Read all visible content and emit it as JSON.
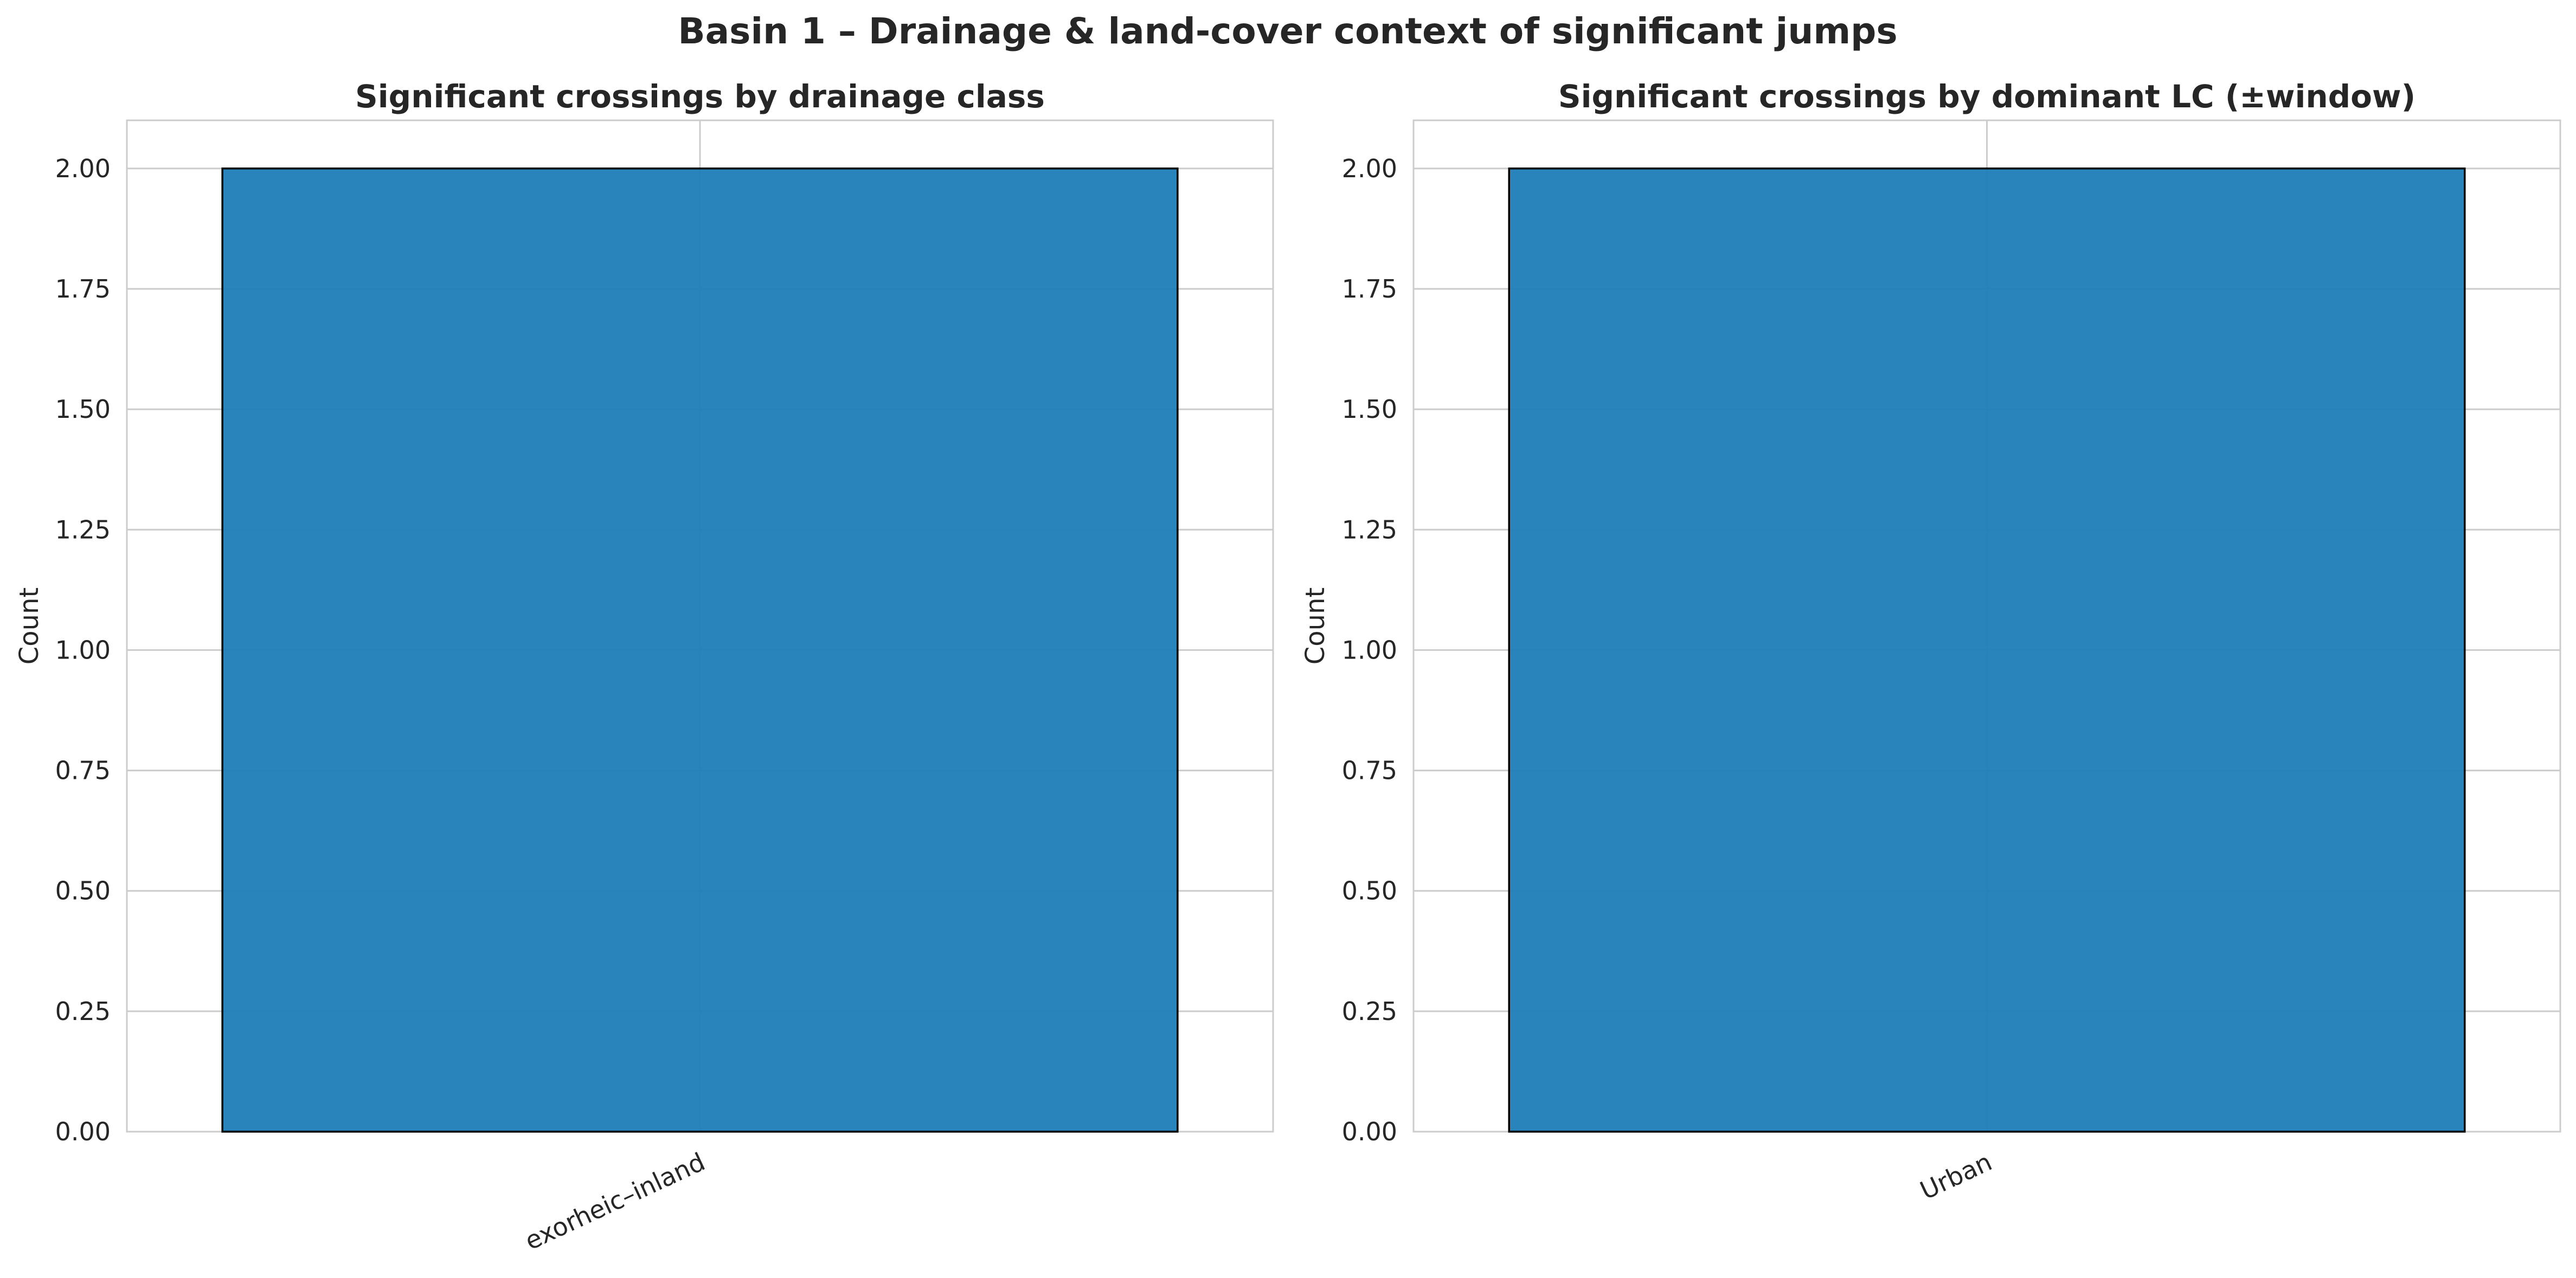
{
  "figure": {
    "title": "Basin 1 – Drainage & land-cover context of significant jumps"
  },
  "chart_data": [
    {
      "type": "bar",
      "title": "Significant crossings by drainage class",
      "xlabel": "",
      "ylabel": "Count",
      "categories": [
        "exorheic–inland"
      ],
      "values": [
        2
      ],
      "ylim": [
        0,
        2.1
      ],
      "yticks": [
        0,
        0.25,
        0.5,
        0.75,
        1.0,
        1.25,
        1.5,
        1.75,
        2.0
      ],
      "ytick_labels": [
        "0.00",
        "0.25",
        "0.50",
        "0.75",
        "1.00",
        "1.25",
        "1.50",
        "1.75",
        "2.00"
      ],
      "grid": true,
      "bar_color": "#1f7fb8"
    },
    {
      "type": "bar",
      "title": "Significant crossings by dominant LC (±window)",
      "xlabel": "",
      "ylabel": "Count",
      "categories": [
        "Urban"
      ],
      "values": [
        2
      ],
      "ylim": [
        0,
        2.1
      ],
      "yticks": [
        0,
        0.25,
        0.5,
        0.75,
        1.0,
        1.25,
        1.5,
        1.75,
        2.0
      ],
      "ytick_labels": [
        "0.00",
        "0.25",
        "0.50",
        "0.75",
        "1.00",
        "1.25",
        "1.50",
        "1.75",
        "2.00"
      ],
      "grid": true,
      "bar_color": "#1f7fb8"
    }
  ]
}
